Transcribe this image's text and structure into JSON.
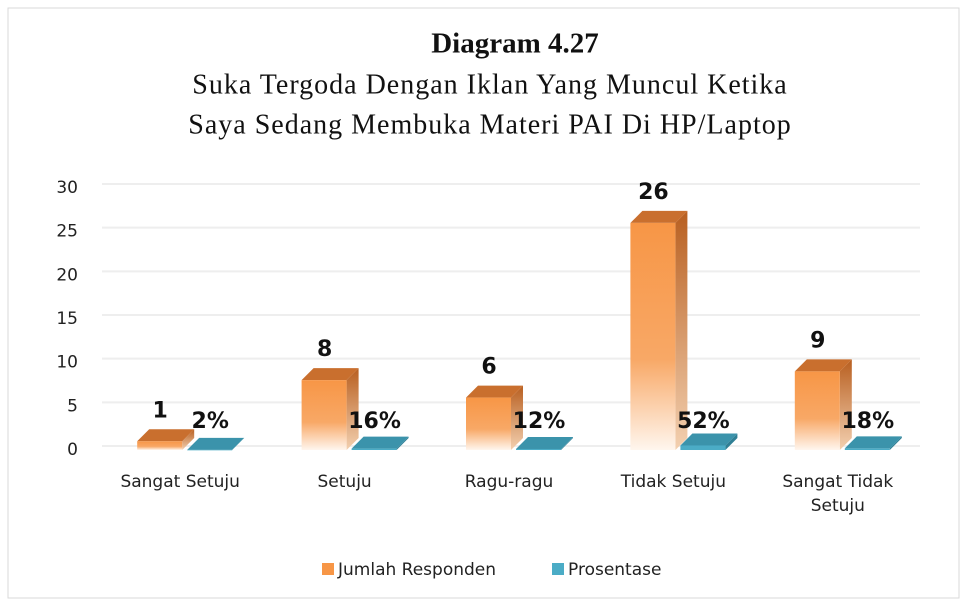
{
  "chart_data": {
    "type": "bar3d",
    "title": "Diagram 4.27",
    "subtitle": [
      "Suka Tergoda Dengan Iklan Yang Muncul Ketika",
      "Saya Sedang Membuka Materi PAI Di HP/Laptop"
    ],
    "categories": [
      "Sangat Setuju",
      "Setuju",
      "Ragu-ragu",
      "Tidak Setuju",
      "Sangat Tidak Setuju"
    ],
    "series": [
      {
        "name": "Jumlah Responden",
        "color": "#f79646",
        "values": [
          1,
          8,
          6,
          26,
          9
        ]
      },
      {
        "name": "Prosentase",
        "color": "#4bacc6",
        "values": [
          0.02,
          0.16,
          0.12,
          0.52,
          0.18
        ],
        "value_labels": [
          "2%",
          "16%",
          "12%",
          "52%",
          "18%"
        ]
      }
    ],
    "ylim": [
      0,
      30
    ],
    "yticks": [
      0,
      5,
      10,
      15,
      20,
      25,
      30
    ],
    "grid": true,
    "legend": "bottom"
  }
}
